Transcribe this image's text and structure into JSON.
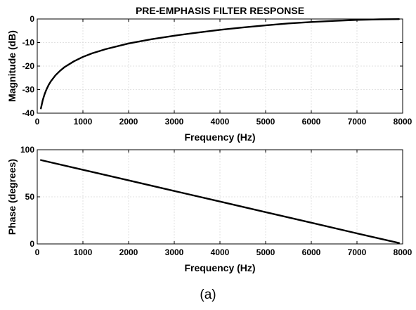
{
  "chart_data": [
    {
      "type": "line",
      "title": "PRE-EMPHASIS FILTER RESPONSE",
      "xlabel": "Frequency (Hz)",
      "ylabel": "Magnitude (dB)",
      "xlim": [
        0,
        8000
      ],
      "ylim": [
        -40,
        0
      ],
      "xticks": [
        0,
        1000,
        2000,
        3000,
        4000,
        5000,
        6000,
        7000,
        8000
      ],
      "yticks": [
        -40,
        -30,
        -20,
        -10,
        0
      ],
      "grid": true,
      "series": [
        {
          "x": [
            80,
            120,
            160,
            200,
            250,
            300,
            400,
            500,
            600,
            800,
            1000,
            1200,
            1500,
            2000,
            2500,
            3000,
            3500,
            4000,
            4500,
            5000,
            5500,
            6000,
            6500,
            7000,
            7500,
            7920
          ],
          "y": [
            -38,
            -34.5,
            -32,
            -30,
            -28,
            -26.4,
            -23.9,
            -22,
            -20.4,
            -18,
            -16.1,
            -14.6,
            -12.8,
            -10.4,
            -8.6,
            -7.1,
            -5.8,
            -4.6,
            -3.6,
            -2.7,
            -1.9,
            -1.3,
            -0.8,
            -0.4,
            -0.15,
            -0.05
          ]
        }
      ]
    },
    {
      "type": "line",
      "title": "",
      "xlabel": "Frequency (Hz)",
      "ylabel": "Phase (degrees)",
      "xlim": [
        0,
        8000
      ],
      "ylim": [
        0,
        100
      ],
      "xticks": [
        0,
        1000,
        2000,
        3000,
        4000,
        5000,
        6000,
        7000,
        8000
      ],
      "yticks": [
        0,
        50,
        100
      ],
      "grid": true,
      "series": [
        {
          "x": [
            80,
            1000,
            2000,
            3000,
            4000,
            5000,
            6000,
            7000,
            7920
          ],
          "y": [
            89,
            78.7,
            67.5,
            56.2,
            45,
            33.7,
            22.5,
            11.2,
            1
          ]
        }
      ]
    }
  ],
  "caption": "(a)"
}
